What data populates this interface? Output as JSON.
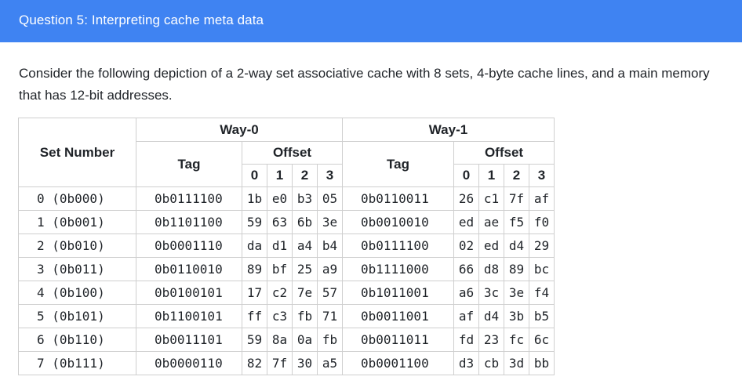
{
  "header": {
    "title": "Question 5: Interpreting cache meta data"
  },
  "description": "Consider the following depiction of a 2-way set associative cache with 8 sets, 4-byte cache lines, and a main memory that has 12-bit addresses.",
  "table": {
    "set_header": "Set Number",
    "tag_header": "Tag",
    "offset_header": "Offset",
    "ways": [
      "Way-0",
      "Way-1"
    ],
    "offsets": [
      "0",
      "1",
      "2",
      "3"
    ],
    "rows": [
      {
        "set": "0 (0b000)",
        "tag0": "0b0111100",
        "bytes0": [
          "1b",
          "e0",
          "b3",
          "05"
        ],
        "tag1": "0b0110011",
        "bytes1": [
          "26",
          "c1",
          "7f",
          "af"
        ]
      },
      {
        "set": "1 (0b001)",
        "tag0": "0b1101100",
        "bytes0": [
          "59",
          "63",
          "6b",
          "3e"
        ],
        "tag1": "0b0010010",
        "bytes1": [
          "ed",
          "ae",
          "f5",
          "f0"
        ]
      },
      {
        "set": "2 (0b010)",
        "tag0": "0b0001110",
        "bytes0": [
          "da",
          "d1",
          "a4",
          "b4"
        ],
        "tag1": "0b0111100",
        "bytes1": [
          "02",
          "ed",
          "d4",
          "29"
        ]
      },
      {
        "set": "3 (0b011)",
        "tag0": "0b0110010",
        "bytes0": [
          "89",
          "bf",
          "25",
          "a9"
        ],
        "tag1": "0b1111000",
        "bytes1": [
          "66",
          "d8",
          "89",
          "bc"
        ]
      },
      {
        "set": "4 (0b100)",
        "tag0": "0b0100101",
        "bytes0": [
          "17",
          "c2",
          "7e",
          "57"
        ],
        "tag1": "0b1011001",
        "bytes1": [
          "a6",
          "3c",
          "3e",
          "f4"
        ]
      },
      {
        "set": "5 (0b101)",
        "tag0": "0b1100101",
        "bytes0": [
          "ff",
          "c3",
          "fb",
          "71"
        ],
        "tag1": "0b0011001",
        "bytes1": [
          "af",
          "d4",
          "3b",
          "b5"
        ]
      },
      {
        "set": "6 (0b110)",
        "tag0": "0b0011101",
        "bytes0": [
          "59",
          "8a",
          "0a",
          "fb"
        ],
        "tag1": "0b0011011",
        "bytes1": [
          "fd",
          "23",
          "fc",
          "6c"
        ]
      },
      {
        "set": "7 (0b111)",
        "tag0": "0b0000110",
        "bytes0": [
          "82",
          "7f",
          "30",
          "a5"
        ],
        "tag1": "0b0001100",
        "bytes1": [
          "d3",
          "cb",
          "3d",
          "bb"
        ]
      }
    ]
  }
}
